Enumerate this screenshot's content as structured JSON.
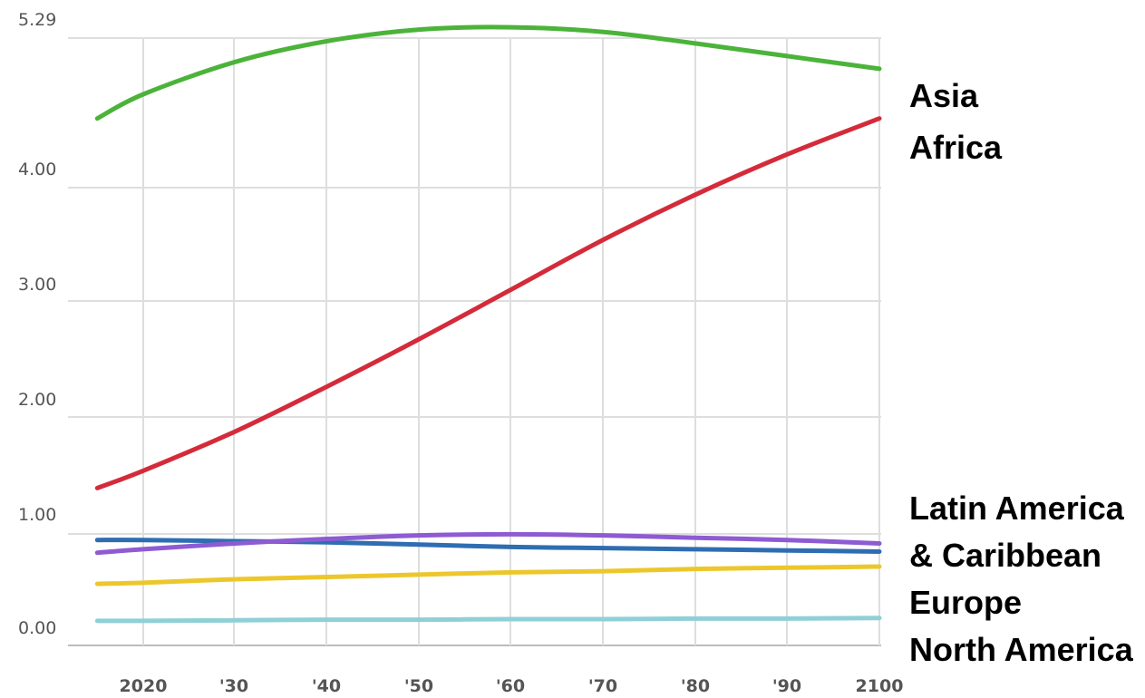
{
  "chart_data": {
    "type": "line",
    "title": "",
    "xlabel": "",
    "ylabel": "",
    "x": [
      2015,
      2020,
      2030,
      2040,
      2050,
      2060,
      2070,
      2080,
      2090,
      2100
    ],
    "x_tick_labels": [
      "2020",
      "'30",
      "'40",
      "'50",
      "'60",
      "'70",
      "'80",
      "'90",
      "2100"
    ],
    "y_tick_labels": [
      "0.00",
      "1.00",
      "2.00",
      "3.00",
      "4.00",
      "5.29"
    ],
    "ylim": [
      0,
      5.29
    ],
    "grid": true,
    "series": [
      {
        "name": "Asia",
        "color": "#4cb33a",
        "values": [
          4.39,
          4.6,
          4.88,
          5.06,
          5.16,
          5.18,
          5.14,
          5.04,
          4.93,
          4.82
        ]
      },
      {
        "name": "Africa",
        "color": "#d42b3a",
        "values": [
          1.19,
          1.34,
          1.68,
          2.07,
          2.48,
          2.91,
          3.34,
          3.73,
          4.08,
          4.39
        ]
      },
      {
        "name": "Latin America & Caribbean",
        "color": "#8e5bd3",
        "values": [
          0.63,
          0.66,
          0.71,
          0.75,
          0.78,
          0.79,
          0.78,
          0.76,
          0.74,
          0.71
        ]
      },
      {
        "name": "Europe",
        "color": "#2e6db2",
        "values": [
          0.74,
          0.74,
          0.73,
          0.72,
          0.7,
          0.68,
          0.67,
          0.66,
          0.65,
          0.64
        ]
      },
      {
        "name": "",
        "color": "#ecc72c",
        "values": [
          0.36,
          0.37,
          0.4,
          0.42,
          0.44,
          0.46,
          0.47,
          0.49,
          0.5,
          0.51
        ]
      },
      {
        "name": "North America",
        "color": "#8fd0d6",
        "values": [
          0.04,
          0.04,
          0.045,
          0.05,
          0.05,
          0.055,
          0.055,
          0.06,
          0.06,
          0.065
        ]
      }
    ],
    "legend": [
      "Asia",
      "Africa",
      "Latin America",
      "& Caribbean",
      "Europe",
      "North America"
    ],
    "legend_position": "right"
  }
}
